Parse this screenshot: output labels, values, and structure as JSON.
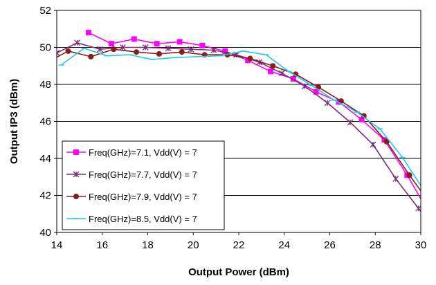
{
  "chart_data": {
    "type": "line",
    "title": "",
    "xlabel": "Output Power (dBm)",
    "ylabel": "Output IP3 (dBm)",
    "xlim": [
      14,
      30
    ],
    "ylim": [
      40,
      52
    ],
    "x_ticks": [
      "14",
      "16",
      "18",
      "20",
      "22",
      "24",
      "26",
      "28",
      "30"
    ],
    "y_ticks": [
      "40",
      "42",
      "44",
      "46",
      "48",
      "50",
      "52"
    ],
    "grid": "horizontal",
    "legend_position": "bottom-left",
    "series": [
      {
        "name": "Freq(GHz)=7.1, Vdd(V) = 7",
        "color": "#ff00ff",
        "marker": "square",
        "points": [
          [
            15.4,
            50.8
          ],
          [
            16.4,
            50.2
          ],
          [
            17.4,
            50.45
          ],
          [
            18.4,
            50.2
          ],
          [
            19.4,
            50.3
          ],
          [
            20.4,
            50.1
          ],
          [
            21.4,
            49.8
          ],
          [
            22.4,
            49.3
          ],
          [
            23.4,
            48.7
          ],
          [
            24.4,
            48.3
          ],
          [
            25.4,
            47.6
          ],
          [
            26.4,
            47.05
          ],
          [
            27.4,
            46.1
          ],
          [
            28.4,
            45.0
          ],
          [
            29.4,
            43.1
          ],
          [
            30.2,
            41.4
          ],
          [
            30.6,
            40.6
          ]
        ]
      },
      {
        "name": "Freq(GHz)=7.7, Vdd(V) = 7",
        "color": "#7a2a7a",
        "marker": "star",
        "points": [
          [
            14.0,
            49.7
          ],
          [
            14.9,
            50.25
          ],
          [
            15.9,
            49.9
          ],
          [
            16.9,
            50.0
          ],
          [
            17.9,
            50.0
          ],
          [
            18.9,
            49.95
          ],
          [
            19.9,
            49.9
          ],
          [
            20.9,
            49.85
          ],
          [
            21.9,
            49.6
          ],
          [
            22.9,
            49.2
          ],
          [
            23.9,
            48.6
          ],
          [
            24.9,
            47.9
          ],
          [
            25.9,
            47.0
          ],
          [
            26.9,
            45.95
          ],
          [
            27.9,
            44.75
          ],
          [
            28.9,
            42.9
          ],
          [
            29.9,
            41.3
          ],
          [
            30.7,
            40.0
          ]
        ]
      },
      {
        "name": "Freq(GHz)=7.9, Vdd(V) = 7",
        "color": "#8b1a1a",
        "marker": "circle",
        "points": [
          [
            13.6,
            49.2
          ],
          [
            14.5,
            49.8
          ],
          [
            15.5,
            49.5
          ],
          [
            16.5,
            49.9
          ],
          [
            17.5,
            49.75
          ],
          [
            18.5,
            49.65
          ],
          [
            19.5,
            49.75
          ],
          [
            20.5,
            49.6
          ],
          [
            21.5,
            49.6
          ],
          [
            22.5,
            49.4
          ],
          [
            23.5,
            49.0
          ],
          [
            24.5,
            48.55
          ],
          [
            25.5,
            47.85
          ],
          [
            26.5,
            47.1
          ],
          [
            27.5,
            46.3
          ],
          [
            28.5,
            44.9
          ],
          [
            29.5,
            43.1
          ],
          [
            30.5,
            41.4
          ]
        ]
      },
      {
        "name": "Freq(GHz)=8.5, Vdd(V) = 7",
        "color": "#20c8f0",
        "marker": "dash",
        "points": [
          [
            14.2,
            49.05
          ],
          [
            15.2,
            49.95
          ],
          [
            16.2,
            49.55
          ],
          [
            17.2,
            49.6
          ],
          [
            18.2,
            49.35
          ],
          [
            19.2,
            49.45
          ],
          [
            20.2,
            49.5
          ],
          [
            21.2,
            49.55
          ],
          [
            22.2,
            49.8
          ],
          [
            23.2,
            49.6
          ],
          [
            24.2,
            48.7
          ],
          [
            25.2,
            47.95
          ],
          [
            26.2,
            47.15
          ],
          [
            27.2,
            46.5
          ],
          [
            28.2,
            45.6
          ],
          [
            29.2,
            44.05
          ],
          [
            30.2,
            42.15
          ]
        ]
      }
    ]
  }
}
